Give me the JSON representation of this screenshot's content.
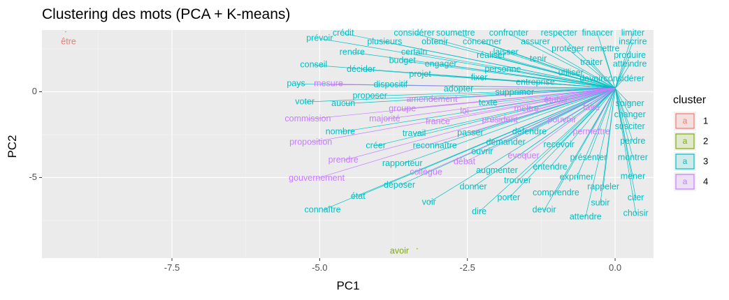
{
  "chart_data": {
    "type": "scatter",
    "title": "Clustering des mots (PCA + K-means)",
    "xlabel": "PC1",
    "ylabel": "PC2",
    "xlim": [
      -9.7,
      0.65
    ],
    "ylim": [
      -9.7,
      3.6
    ],
    "x_ticks": [
      -7.5,
      -5.0,
      -2.5,
      0.0
    ],
    "x_tick_labels": [
      "-7.5",
      "-5.0",
      "-2.5",
      "0.0"
    ],
    "y_ticks": [
      -5,
      0
    ],
    "y_tick_labels": [
      "-5",
      "0"
    ],
    "grid": true,
    "legend": {
      "title": "cluster",
      "placement": "right",
      "entries": [
        {
          "key": "1",
          "color": "#F8766D",
          "glyph": "a"
        },
        {
          "key": "2",
          "color": "#7CAE00",
          "glyph": "a"
        },
        {
          "key": "3",
          "color": "#00BFC4",
          "glyph": "a"
        },
        {
          "key": "4",
          "color": "#C77CFF",
          "glyph": "a"
        }
      ]
    },
    "cluster_colors": {
      "1": "#F8766D",
      "2": "#7CAE00",
      "3": "#00BFC4",
      "4": "#C77CFF"
    },
    "cluster_point_colors": {
      "1": "#F8766D",
      "2": "#7CAE00",
      "3": "#00BFC4",
      "4": "#C77CFF"
    },
    "hub": [
      0.0,
      0.2
    ],
    "points": [
      {
        "label": "être",
        "x": -9.3,
        "y": 3.5,
        "cluster": "1",
        "lx": -9.25,
        "ly": 2.9
      },
      {
        "label": "avoir",
        "x": -3.35,
        "y": -9.15,
        "cluster": "2",
        "lx": -3.65,
        "ly": -9.3
      },
      {
        "label": "crédit",
        "x": -4.6,
        "y": 3.4,
        "cluster": "3"
      },
      {
        "label": "considérer",
        "x": -3.4,
        "y": 3.4,
        "cluster": "3"
      },
      {
        "label": "soumettre",
        "x": -2.7,
        "y": 3.4,
        "cluster": "3"
      },
      {
        "label": "confronter",
        "x": -1.8,
        "y": 3.4,
        "cluster": "3"
      },
      {
        "label": "respecter",
        "x": -0.95,
        "y": 3.4,
        "cluster": "3"
      },
      {
        "label": "financer",
        "x": -0.3,
        "y": 3.4,
        "cluster": "3"
      },
      {
        "label": "limiter",
        "x": 0.3,
        "y": 3.4,
        "cluster": "3"
      },
      {
        "label": "prévoir",
        "x": -5.0,
        "y": 3.1,
        "cluster": "3"
      },
      {
        "label": "plusieurs",
        "x": -3.9,
        "y": 2.9,
        "cluster": "3"
      },
      {
        "label": "obtenir",
        "x": -3.05,
        "y": 2.9,
        "cluster": "3"
      },
      {
        "label": "concerner",
        "x": -2.25,
        "y": 2.9,
        "cluster": "3"
      },
      {
        "label": "assurer",
        "x": -1.35,
        "y": 2.9,
        "cluster": "3"
      },
      {
        "label": "inscrire",
        "x": 0.3,
        "y": 2.9,
        "cluster": "3"
      },
      {
        "label": "rendre",
        "x": -4.45,
        "y": 2.3,
        "cluster": "3"
      },
      {
        "label": "certain",
        "x": -3.4,
        "y": 2.3,
        "cluster": "3"
      },
      {
        "label": "laisser",
        "x": -1.85,
        "y": 2.3,
        "cluster": "3"
      },
      {
        "label": "protéger",
        "x": -0.8,
        "y": 2.5,
        "cluster": "3"
      },
      {
        "label": "remettre",
        "x": -0.2,
        "y": 2.5,
        "cluster": "3"
      },
      {
        "label": "produire",
        "x": 0.25,
        "y": 2.1,
        "cluster": "3"
      },
      {
        "label": "réaliser",
        "x": -2.1,
        "y": 2.1,
        "cluster": "3"
      },
      {
        "label": "tenir",
        "x": -1.3,
        "y": 1.9,
        "cluster": "3"
      },
      {
        "label": "traiter",
        "x": -0.4,
        "y": 1.7,
        "cluster": "3"
      },
      {
        "label": "atteindre",
        "x": 0.25,
        "y": 1.6,
        "cluster": "3"
      },
      {
        "label": "budget",
        "x": -3.6,
        "y": 1.8,
        "cluster": "3"
      },
      {
        "label": "engager",
        "x": -2.95,
        "y": 1.6,
        "cluster": "3"
      },
      {
        "label": "conseil",
        "x": -5.1,
        "y": 1.55,
        "cluster": "3"
      },
      {
        "label": "décider",
        "x": -4.3,
        "y": 1.3,
        "cluster": "3"
      },
      {
        "label": "personne",
        "x": -1.9,
        "y": 1.3,
        "cluster": "3"
      },
      {
        "label": "utiliser",
        "x": -0.75,
        "y": 1.1,
        "cluster": "3"
      },
      {
        "label": "projet",
        "x": -3.3,
        "y": 1.0,
        "cluster": "3"
      },
      {
        "label": "fixer",
        "x": -2.3,
        "y": 0.8,
        "cluster": "3"
      },
      {
        "label": "entreprise",
        "x": -1.35,
        "y": 0.55,
        "cluster": "3"
      },
      {
        "label": "devoir",
        "x": -0.4,
        "y": 0.75,
        "cluster": "3"
      },
      {
        "label": "considérer",
        "x": 0.15,
        "y": 0.75,
        "cluster": "3"
      },
      {
        "label": "pays",
        "x": -5.4,
        "y": 0.45,
        "cluster": "3"
      },
      {
        "label": "dispositif",
        "x": -3.8,
        "y": 0.4,
        "cluster": "3"
      },
      {
        "label": "adopter",
        "x": -2.65,
        "y": 0.15,
        "cluster": "3"
      },
      {
        "label": "supprimer",
        "x": -1.7,
        "y": -0.05,
        "cluster": "3"
      },
      {
        "label": "proposer",
        "x": -4.15,
        "y": -0.25,
        "cluster": "3"
      },
      {
        "label": "voter",
        "x": -5.25,
        "y": -0.6,
        "cluster": "3"
      },
      {
        "label": "aucun",
        "x": -4.6,
        "y": -0.7,
        "cluster": "3"
      },
      {
        "label": "texte",
        "x": -2.15,
        "y": -0.65,
        "cluster": "3"
      },
      {
        "label": "soigner",
        "x": 0.25,
        "y": -0.7,
        "cluster": "3"
      },
      {
        "label": "changer",
        "x": 0.25,
        "y": -1.35,
        "cluster": "3"
      },
      {
        "label": "susciter",
        "x": 0.25,
        "y": -2.05,
        "cluster": "3"
      },
      {
        "label": "nombre",
        "x": -4.65,
        "y": -2.35,
        "cluster": "3"
      },
      {
        "label": "travail",
        "x": -3.4,
        "y": -2.45,
        "cluster": "3"
      },
      {
        "label": "passer",
        "x": -2.45,
        "y": -2.4,
        "cluster": "3"
      },
      {
        "label": "défendre",
        "x": -1.45,
        "y": -2.35,
        "cluster": "3"
      },
      {
        "label": "demander",
        "x": -1.85,
        "y": -2.95,
        "cluster": "3"
      },
      {
        "label": "recevoir",
        "x": -0.95,
        "y": -3.1,
        "cluster": "3"
      },
      {
        "label": "perdre",
        "x": 0.3,
        "y": -2.9,
        "cluster": "3"
      },
      {
        "label": "créer",
        "x": -4.05,
        "y": -3.15,
        "cluster": "3"
      },
      {
        "label": "reconnaître",
        "x": -3.05,
        "y": -3.15,
        "cluster": "3"
      },
      {
        "label": "ouvrir",
        "x": -2.25,
        "y": -3.5,
        "cluster": "3"
      },
      {
        "label": "présenter",
        "x": -0.45,
        "y": -3.85,
        "cluster": "3"
      },
      {
        "label": "montrer",
        "x": 0.3,
        "y": -3.85,
        "cluster": "3"
      },
      {
        "label": "rapporteur",
        "x": -3.6,
        "y": -4.2,
        "cluster": "3"
      },
      {
        "label": "entendre",
        "x": -1.1,
        "y": -4.4,
        "cluster": "3"
      },
      {
        "label": "augmenter",
        "x": -2.0,
        "y": -4.6,
        "cluster": "3"
      },
      {
        "label": "exprimer",
        "x": -0.65,
        "y": -5.0,
        "cluster": "3"
      },
      {
        "label": "mener",
        "x": 0.3,
        "y": -4.95,
        "cluster": "3"
      },
      {
        "label": "trouver",
        "x": -1.65,
        "y": -5.2,
        "cluster": "3"
      },
      {
        "label": "déposer",
        "x": -3.65,
        "y": -5.45,
        "cluster": "3"
      },
      {
        "label": "donner",
        "x": -2.4,
        "y": -5.55,
        "cluster": "3"
      },
      {
        "label": "rappeler",
        "x": -0.2,
        "y": -5.55,
        "cluster": "3"
      },
      {
        "label": "comprendre",
        "x": -1.0,
        "y": -5.9,
        "cluster": "3"
      },
      {
        "label": "état",
        "x": -4.35,
        "y": -6.1,
        "cluster": "3"
      },
      {
        "label": "porter",
        "x": -1.8,
        "y": -6.2,
        "cluster": "3"
      },
      {
        "label": "citer",
        "x": 0.35,
        "y": -6.2,
        "cluster": "3"
      },
      {
        "label": "voir",
        "x": -3.15,
        "y": -6.45,
        "cluster": "3"
      },
      {
        "label": "subir",
        "x": -0.25,
        "y": -6.5,
        "cluster": "3"
      },
      {
        "label": "connaître",
        "x": -4.95,
        "y": -6.9,
        "cluster": "3"
      },
      {
        "label": "dire",
        "x": -2.3,
        "y": -7.0,
        "cluster": "3"
      },
      {
        "label": "devoir",
        "x": -1.2,
        "y": -6.9,
        "cluster": "3"
      },
      {
        "label": "choisir",
        "x": 0.35,
        "y": -7.1,
        "cluster": "3"
      },
      {
        "label": "attendre",
        "x": -0.5,
        "y": -7.3,
        "cluster": "3"
      },
      {
        "label": "mesure",
        "x": -4.85,
        "y": 0.45,
        "cluster": "4"
      },
      {
        "label": "amendement",
        "x": -3.1,
        "y": -0.45,
        "cluster": "4"
      },
      {
        "label": "groupe",
        "x": -3.6,
        "y": -1.0,
        "cluster": "4"
      },
      {
        "label": "loi",
        "x": -2.55,
        "y": -1.15,
        "cluster": "4"
      },
      {
        "label": "mettre",
        "x": -1.5,
        "y": -1.0,
        "cluster": "4"
      },
      {
        "label": "établir",
        "x": -1.0,
        "y": -0.5,
        "cluster": "4"
      },
      {
        "label": "faire",
        "x": -0.4,
        "y": -0.95,
        "cluster": "4"
      },
      {
        "label": "commission",
        "x": -5.2,
        "y": -1.6,
        "cluster": "4"
      },
      {
        "label": "majorité",
        "x": -3.9,
        "y": -1.6,
        "cluster": "4"
      },
      {
        "label": "président",
        "x": -1.95,
        "y": -1.65,
        "cluster": "4"
      },
      {
        "label": "pouvoir",
        "x": -0.9,
        "y": -1.65,
        "cluster": "4"
      },
      {
        "label": "france",
        "x": -3.0,
        "y": -1.75,
        "cluster": "4"
      },
      {
        "label": "permettre",
        "x": -0.4,
        "y": -2.35,
        "cluster": "4"
      },
      {
        "label": "proposition",
        "x": -5.15,
        "y": -2.95,
        "cluster": "4"
      },
      {
        "label": "évoquer",
        "x": -1.55,
        "y": -3.75,
        "cluster": "4"
      },
      {
        "label": "prendre",
        "x": -4.6,
        "y": -4.0,
        "cluster": "4"
      },
      {
        "label": "débat",
        "x": -2.55,
        "y": -4.1,
        "cluster": "4"
      },
      {
        "label": "collègue",
        "x": -3.2,
        "y": -4.7,
        "cluster": "4"
      },
      {
        "label": "gouvernement",
        "x": -5.05,
        "y": -5.05,
        "cluster": "4"
      }
    ]
  }
}
